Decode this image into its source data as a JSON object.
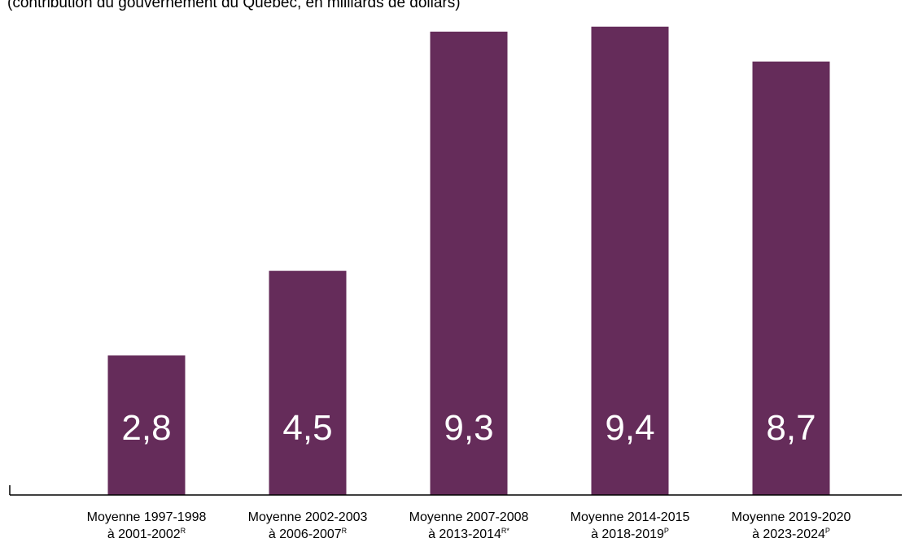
{
  "subtitle": "(contribution du gouvernement du Québec, en milliards de dollars)",
  "chart_data": {
    "type": "bar",
    "title": "",
    "subtitle": "(contribution du gouvernement du Québec, en milliards de dollars)",
    "xlabel": "",
    "ylabel": "",
    "bar_color": "#652C5A",
    "data_labels_color": "#FFFFFF",
    "grid": false,
    "categories": [
      {
        "line1": "Moyenne 1997-1998",
        "line2": "à 2001-2002",
        "note": "R"
      },
      {
        "line1": "Moyenne 2002-2003",
        "line2": "à 2006-2007",
        "note": "R"
      },
      {
        "line1": "Moyenne 2007-2008",
        "line2": "à 2013-2014",
        "note": "R*"
      },
      {
        "line1": "Moyenne 2014-2015",
        "line2": "à 2018-2019",
        "note": "P"
      },
      {
        "line1": "Moyenne 2019-2020",
        "line2": "à 2023-2024",
        "note": "P"
      }
    ],
    "values": [
      2.8,
      4.5,
      9.3,
      9.4,
      8.7
    ],
    "value_labels": [
      "2,8",
      "4,5",
      "9,3",
      "9,4",
      "8,7"
    ]
  }
}
